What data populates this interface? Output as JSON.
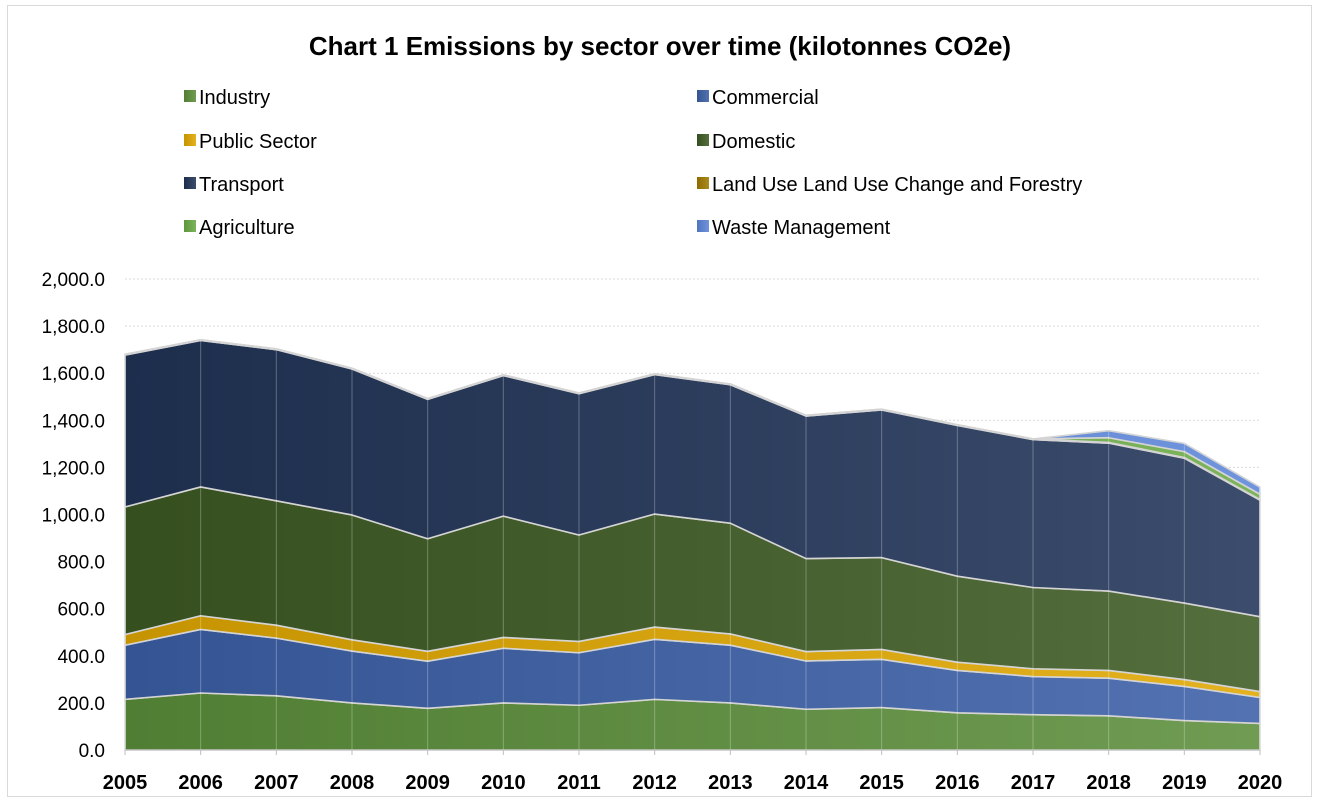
{
  "chart_data": {
    "type": "area",
    "stacked": true,
    "title": "Chart 1 Emissions by sector over time (kilotonnes CO2e)",
    "categories": [
      "2005",
      "2006",
      "2007",
      "2008",
      "2009",
      "2010",
      "2011",
      "2012",
      "2013",
      "2014",
      "2015",
      "2016",
      "2017",
      "2018",
      "2019",
      "2020"
    ],
    "ylim": [
      0,
      2000
    ],
    "yticks": [
      "0.0",
      "200.0",
      "400.0",
      "600.0",
      "800.0",
      "1,000.0",
      "1,200.0",
      "1,400.0",
      "1,600.0",
      "1,800.0",
      "2,000.0"
    ],
    "grid": true,
    "legend_position": "top",
    "series": [
      {
        "name": "Industry",
        "color": "#5b8f3a",
        "values": [
          215,
          242,
          230,
          200,
          177,
          200,
          190,
          215,
          200,
          173,
          180,
          158,
          150,
          145,
          125,
          113
        ]
      },
      {
        "name": "Commercial",
        "color": "#3b5fa8",
        "values": [
          230,
          270,
          245,
          220,
          200,
          232,
          223,
          255,
          245,
          205,
          205,
          180,
          162,
          160,
          145,
          110
        ]
      },
      {
        "name": "Public Sector",
        "color": "#e0a800",
        "values": [
          45,
          58,
          55,
          48,
          42,
          46,
          48,
          52,
          48,
          40,
          42,
          35,
          33,
          33,
          29,
          25
        ]
      },
      {
        "name": "Domestic",
        "color": "#3d5a23",
        "values": [
          542,
          547,
          528,
          530,
          478,
          515,
          452,
          480,
          470,
          395,
          390,
          365,
          345,
          337,
          325,
          318
        ]
      },
      {
        "name": "Transport",
        "color": "#213458",
        "values": [
          645,
          622,
          642,
          620,
          592,
          597,
          600,
          592,
          588,
          605,
          627,
          640,
          628,
          628,
          615,
          495
        ]
      },
      {
        "name": "Land Use Land Use Change and Forestry",
        "color": "#a07a00",
        "values": [
          3,
          3,
          3,
          3,
          3,
          3,
          3,
          3,
          3,
          3,
          3,
          3,
          3,
          3,
          3,
          3
        ]
      },
      {
        "name": "Agriculture",
        "color": "#6aaa45",
        "values": [
          0,
          0,
          0,
          0,
          0,
          0,
          0,
          0,
          0,
          0,
          0,
          0,
          0,
          20,
          25,
          22
        ]
      },
      {
        "name": "Waste Management",
        "color": "#5b85d8",
        "values": [
          0,
          0,
          0,
          0,
          0,
          0,
          0,
          0,
          0,
          0,
          0,
          0,
          0,
          30,
          35,
          30
        ]
      }
    ]
  }
}
